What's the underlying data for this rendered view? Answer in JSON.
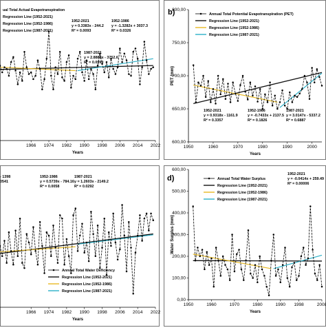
{
  "colors": {
    "obs": "#000000",
    "full": "#111111",
    "early": "#e8b923",
    "late": "#2ab0c8"
  },
  "chart_data": [
    {
      "id": "a",
      "panel_label": "",
      "type": "line",
      "ylabel": "",
      "xlabel": "Years",
      "xlim": [
        1952,
        2022
      ],
      "ylim": [
        0,
        800
      ],
      "xticks": [
        1966,
        1974,
        1982,
        1990,
        1998,
        2006,
        2014,
        2022
      ],
      "ytick_labels": [],
      "legend": [
        "ual Total Actual Evapotranspiration",
        "Regression Line (1952-2021)",
        "Regression Line (1952-1986)",
        "Regression Line (1987-2021)"
      ],
      "equations": [
        {
          "lines": [
            "1952-2021",
            "y = 0.3383x - 244.2",
            "R² = 0.0093"
          ]
        },
        {
          "lines": [
            "1952-1986",
            "y = -1.3282x + 3037.3",
            "R² = 0.0326"
          ]
        },
        {
          "lines": [
            "1987-2021",
            "y = 2.8888x - 3752.6",
            "R² = 0.0999"
          ]
        }
      ],
      "regression": [
        {
          "x": [
            1952,
            2021
          ],
          "y": [
            417,
            440
          ]
        },
        {
          "x": [
            1952,
            1986
          ],
          "y": [
            430,
            410
          ]
        },
        {
          "x": [
            1987,
            2021
          ],
          "y": [
            410,
            480
          ]
        }
      ],
      "series": [
        {
          "x": [
            1952,
            1953,
            1954,
            1955,
            1956,
            1957,
            1958,
            1959,
            1960,
            1961,
            1962,
            1963,
            1964,
            1965,
            1966,
            1967,
            1968,
            1969,
            1970,
            1971,
            1972,
            1973,
            1974,
            1975,
            1976,
            1977,
            1978,
            1979,
            1980,
            1981,
            1982,
            1983,
            1984,
            1985,
            1986,
            1987,
            1988,
            1989,
            1990,
            1991,
            1992,
            1993,
            1994,
            1995,
            1996,
            1997,
            1998,
            1999,
            2000,
            2001,
            2002,
            2003,
            2004,
            2005,
            2006,
            2007,
            2008,
            2009,
            2010,
            2011,
            2012,
            2013,
            2014,
            2015,
            2016,
            2017,
            2018,
            2019,
            2020,
            2021
          ],
          "y": [
            440,
            400,
            430,
            420,
            380,
            460,
            490,
            410,
            330,
            400,
            350,
            520,
            430,
            390,
            400,
            360,
            380,
            470,
            420,
            300,
            360,
            480,
            640,
            380,
            300,
            430,
            390,
            520,
            370,
            350,
            460,
            500,
            310,
            380,
            360,
            480,
            520,
            400,
            350,
            470,
            360,
            420,
            390,
            300,
            440,
            510,
            450,
            400,
            460,
            370,
            480,
            420,
            390,
            430,
            540,
            460,
            510,
            470,
            390,
            380,
            520,
            540,
            480,
            330,
            430,
            580,
            470,
            390,
            420,
            430
          ]
        }
      ]
    },
    {
      "id": "b",
      "panel_label": "b)",
      "type": "line",
      "ylabel": "PET (mm)",
      "xlabel": "Years",
      "xlim": [
        1950,
        2004
      ],
      "ylim": [
        600,
        800
      ],
      "xticks": [
        1950,
        1960,
        1970,
        1980,
        1990,
        2000
      ],
      "yticks": [
        600,
        650,
        700,
        750,
        800
      ],
      "ytick_labels": [
        "600,00",
        "650,00",
        "700,00",
        "750,00",
        "800,00"
      ],
      "legend": [
        "Annual Total Potential Evapotranspiration (PET)",
        "Regression Line (1952-2021)",
        "Regression Line (1952-1986)",
        "Regression Line (1987-2021)"
      ],
      "equations": [
        {
          "lines": [
            "1952-2021",
            "y = 0.9318x - 1161.9",
            "R² = 0.3357"
          ]
        },
        {
          "lines": [
            "1952-1986",
            "y = -0.7433x + 2137.5",
            "R² = 0.1826"
          ]
        },
        {
          "lines": [
            "1987-2021",
            "y = 3.0147x - 5337.2",
            "R² = 0.6887"
          ]
        }
      ],
      "regression": [
        {
          "x": [
            1952,
            2004
          ],
          "y": [
            658,
            705
          ]
        },
        {
          "x": [
            1952,
            1986
          ],
          "y": [
            686,
            660
          ]
        },
        {
          "x": [
            1987,
            2004
          ],
          "y": [
            652,
            704
          ]
        }
      ],
      "series": [
        {
          "x": [
            1952,
            1953,
            1954,
            1955,
            1956,
            1957,
            1958,
            1959,
            1960,
            1961,
            1962,
            1963,
            1964,
            1965,
            1966,
            1967,
            1968,
            1969,
            1970,
            1971,
            1972,
            1973,
            1974,
            1975,
            1976,
            1977,
            1978,
            1979,
            1980,
            1981,
            1982,
            1983,
            1984,
            1985,
            1986,
            1987,
            1988,
            1989,
            1990,
            1991,
            1992,
            1993,
            1994,
            1995,
            1996,
            1997,
            1998,
            1999,
            2000,
            2001,
            2002,
            2003,
            2004
          ],
          "y": [
            716,
            660,
            690,
            685,
            700,
            668,
            692,
            660,
            680,
            658,
            700,
            672,
            695,
            665,
            688,
            660,
            690,
            673,
            662,
            686,
            700,
            676,
            664,
            690,
            670,
            684,
            661,
            680,
            650,
            672,
            660,
            690,
            655,
            670,
            650,
            660,
            678,
            655,
            650,
            675,
            660,
            670,
            668,
            673,
            680,
            700,
            690,
            665,
            712,
            690,
            710,
            698,
            685
          ]
        }
      ]
    },
    {
      "id": "c",
      "panel_label": "",
      "type": "line",
      "ylabel": "",
      "xlabel": "Years",
      "xlim": [
        1952,
        2022
      ],
      "ylim": [
        0,
        800
      ],
      "xticks": [
        1966,
        1974,
        1982,
        1990,
        1998,
        2006,
        2014,
        2022
      ],
      "ytick_labels": [],
      "legend": [
        "Annual Total Water Deficiency",
        "Regression Line (1952-2021)",
        "Regression Line (1952-1986)",
        "Regression Line (1987-2021)"
      ],
      "equations": [
        {
          "lines": [
            "- 1398",
            "0541"
          ]
        },
        {
          "lines": [
            "1952-1986",
            "y = 0.5739x - 784.16",
            "R² = 0.0058"
          ]
        },
        {
          "lines": [
            "1987-2021",
            "y = 1.2603x - 2149.2",
            "R² = 0.0292"
          ]
        }
      ],
      "regression": [
        {
          "x": [
            1952,
            2021
          ],
          "y": [
            315,
            430
          ]
        },
        {
          "x": [
            1952,
            1986
          ],
          "y": [
            325,
            355
          ]
        },
        {
          "x": [
            1987,
            2021
          ],
          "y": [
            370,
            425
          ]
        }
      ],
      "series": [
        {
          "x": [
            1952,
            1953,
            1954,
            1955,
            1956,
            1957,
            1958,
            1959,
            1960,
            1961,
            1962,
            1963,
            1964,
            1965,
            1966,
            1967,
            1968,
            1969,
            1970,
            1971,
            1972,
            1973,
            1974,
            1975,
            1976,
            1977,
            1978,
            1979,
            1980,
            1981,
            1982,
            1983,
            1984,
            1985,
            1986,
            1987,
            1988,
            1989,
            1990,
            1991,
            1992,
            1993,
            1994,
            1995,
            1996,
            1997,
            1998,
            1999,
            2000,
            2001,
            2002,
            2003,
            2004,
            2005,
            2006,
            2007,
            2008,
            2009,
            2010,
            2011,
            2012,
            2013,
            2014,
            2015,
            2016,
            2017,
            2018,
            2019,
            2020,
            2021
          ],
          "y": [
            360,
            300,
            390,
            260,
            440,
            330,
            250,
            450,
            300,
            520,
            260,
            230,
            430,
            380,
            310,
            470,
            330,
            250,
            500,
            360,
            200,
            440,
            420,
            300,
            480,
            350,
            260,
            540,
            520,
            250,
            400,
            300,
            200,
            540,
            580,
            330,
            420,
            490,
            320,
            380,
            270,
            560,
            430,
            300,
            480,
            230,
            350,
            520,
            190,
            440,
            360,
            550,
            380,
            280,
            340,
            600,
            420,
            210,
            500,
            350,
            80,
            320,
            420,
            540,
            390,
            520,
            550,
            450,
            550,
            510
          ]
        }
      ]
    },
    {
      "id": "d",
      "panel_label": "d)",
      "type": "line",
      "ylabel": "Water Surplus (mm)",
      "xlabel": "Years",
      "xlim": [
        1950,
        2008
      ],
      "ylim": [
        0,
        600
      ],
      "xticks": [
        1950,
        1960,
        1970,
        1980,
        1990,
        1998,
        2008
      ],
      "yticks": [
        0,
        100,
        200,
        300,
        400,
        500,
        600
      ],
      "ytick_labels": [
        "0,00",
        "100,00",
        "200,00",
        "300,00",
        "400,00",
        "500,00",
        "600,00"
      ],
      "legend": [
        "Annual Total Water Surplus",
        "Regression Line (1952-2021)",
        "Regression Line (1952-1986)",
        "Regression Line (1987-2021)"
      ],
      "equations": [
        {
          "lines": [
            "1952-2021",
            "y = -0.0414x + 259.49",
            "R² = 0.00006"
          ]
        }
      ],
      "regression": [
        {
          "x": [
            1952,
            2008
          ],
          "y": [
            180,
            178
          ]
        },
        {
          "x": [
            1952,
            1986
          ],
          "y": [
            210,
            143
          ]
        },
        {
          "x": [
            1987,
            2008
          ],
          "y": [
            143,
            205
          ]
        }
      ],
      "series": [
        {
          "x": [
            1952,
            1953,
            1954,
            1955,
            1956,
            1957,
            1958,
            1959,
            1960,
            1961,
            1962,
            1963,
            1964,
            1965,
            1966,
            1967,
            1968,
            1969,
            1970,
            1971,
            1972,
            1973,
            1974,
            1975,
            1976,
            1977,
            1978,
            1979,
            1980,
            1981,
            1982,
            1983,
            1984,
            1985,
            1986,
            1987,
            1988,
            1989,
            1990,
            1991,
            1992,
            1993,
            1994,
            1995,
            1996,
            1997,
            1998,
            1999,
            2000,
            2001,
            2002,
            2003,
            2004,
            2005,
            2006,
            2007,
            2008
          ],
          "y": [
            430,
            180,
            240,
            200,
            230,
            140,
            220,
            160,
            190,
            60,
            240,
            180,
            110,
            200,
            160,
            140,
            90,
            300,
            130,
            210,
            230,
            140,
            90,
            180,
            320,
            120,
            100,
            160,
            80,
            200,
            140,
            110,
            60,
            20,
            180,
            300,
            110,
            140,
            80,
            160,
            240,
            100,
            60,
            150,
            170,
            90,
            110,
            200,
            240,
            160,
            190,
            430,
            230,
            120,
            90,
            160,
            60
          ]
        }
      ]
    }
  ]
}
